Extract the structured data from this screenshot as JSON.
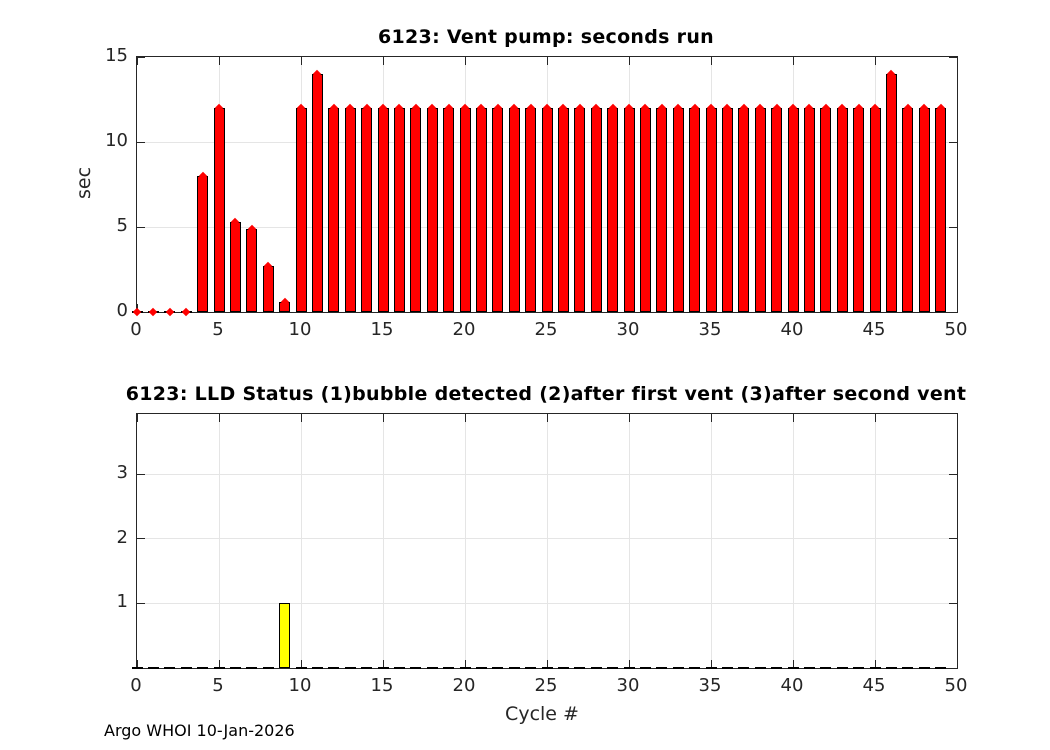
{
  "figure": {
    "footer": "Argo WHOI 10-Jan-2026"
  },
  "style": {
    "axis_color": "#262626",
    "grid_color": "#e5e5e5",
    "background": "#ffffff"
  },
  "chart_data": [
    {
      "type": "bar",
      "title": "6123: Vent pump: seconds run",
      "xlabel": "",
      "ylabel": "sec",
      "x": [
        0,
        1,
        2,
        3,
        4,
        5,
        6,
        7,
        8,
        9,
        10,
        11,
        12,
        13,
        14,
        15,
        16,
        17,
        18,
        19,
        20,
        21,
        22,
        23,
        24,
        25,
        26,
        27,
        28,
        29,
        30,
        31,
        32,
        33,
        34,
        35,
        36,
        37,
        38,
        39,
        40,
        41,
        42,
        43,
        44,
        45,
        46,
        47,
        48,
        49
      ],
      "values": [
        0,
        0,
        0,
        0,
        8,
        12,
        5.3,
        4.9,
        2.7,
        0.6,
        12,
        14,
        12,
        12,
        12,
        12,
        12,
        12,
        12,
        12,
        12,
        12,
        12,
        12,
        12,
        12,
        12,
        12,
        12,
        12,
        12,
        12,
        12,
        12,
        12,
        12,
        12,
        12,
        12,
        12,
        12,
        12,
        12,
        12,
        12,
        12,
        14,
        12,
        12,
        12
      ],
      "xlim": [
        0,
        50
      ],
      "ylim": [
        0,
        15
      ],
      "xticks": [
        0,
        5,
        10,
        15,
        20,
        25,
        30,
        35,
        40,
        45,
        50
      ],
      "yticks": [
        0,
        5,
        10,
        15
      ],
      "grid": true,
      "bar_color": "#ff0000",
      "bar_edge_color": "#000000",
      "marker": "diamond",
      "marker_color": "#ff0000"
    },
    {
      "type": "bar",
      "title": "6123: LLD Status   (1)bubble detected   (2)after first vent  (3)after second vent",
      "xlabel": "Cycle #",
      "ylabel": "",
      "x": [
        0,
        1,
        2,
        3,
        4,
        5,
        6,
        7,
        8,
        9,
        10,
        11,
        12,
        13,
        14,
        15,
        16,
        17,
        18,
        19,
        20,
        21,
        22,
        23,
        24,
        25,
        26,
        27,
        28,
        29,
        30,
        31,
        32,
        33,
        34,
        35,
        36,
        37,
        38,
        39,
        40,
        41,
        42,
        43,
        44,
        45,
        46,
        47,
        48,
        49
      ],
      "values": [
        0,
        0,
        0,
        0,
        0,
        0,
        0,
        0,
        0,
        1,
        0,
        0,
        0,
        0,
        0,
        0,
        0,
        0,
        0,
        0,
        0,
        0,
        0,
        0,
        0,
        0,
        0,
        0,
        0,
        0,
        0,
        0,
        0,
        0,
        0,
        0,
        0,
        0,
        0,
        0,
        0,
        0,
        0,
        0,
        0,
        0,
        0,
        0,
        0,
        0
      ],
      "xlim": [
        0,
        50
      ],
      "ylim": [
        0,
        3.93
      ],
      "xticks": [
        0,
        5,
        10,
        15,
        20,
        25,
        30,
        35,
        40,
        45,
        50
      ],
      "yticks": [
        1,
        2,
        3
      ],
      "grid": true,
      "bar_color": "#ffff00",
      "bar_edge_color": "#000000",
      "marker": null,
      "marker_color": null
    }
  ]
}
